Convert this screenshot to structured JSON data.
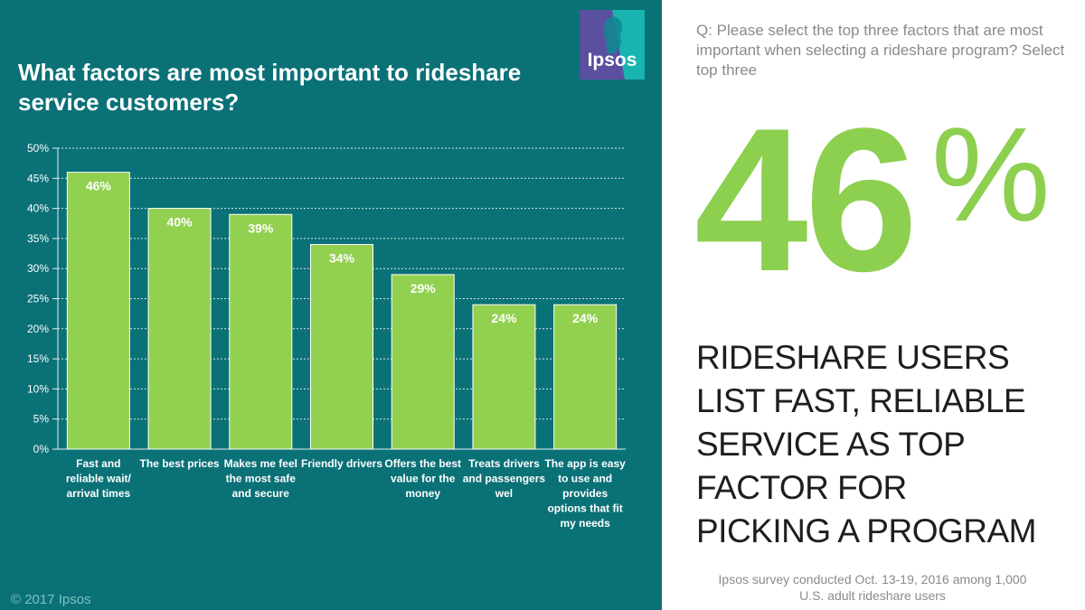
{
  "header": {
    "title": "What factors are most important to rideshare service customers?",
    "logo_text": "Ipsos"
  },
  "chart_data": {
    "type": "bar",
    "categories": [
      "Fast and reliable wait/ arrival times",
      "The best prices",
      "Makes me feel the most safe and secure",
      "Friendly drivers",
      "Offers the best value for the money",
      "Treats drivers and passengers wel",
      "The app is easy to use and provides options that fit my needs"
    ],
    "category_lines": [
      [
        "Fast and",
        "reliable wait/",
        "arrival times"
      ],
      [
        "The best prices"
      ],
      [
        "Makes me feel",
        "the most safe",
        "and secure"
      ],
      [
        "Friendly drivers"
      ],
      [
        "Offers the best",
        "value for the",
        "money"
      ],
      [
        "Treats drivers",
        "and passengers",
        "wel"
      ],
      [
        "The app is easy",
        "to use and",
        "provides",
        "options that fit",
        "my needs"
      ]
    ],
    "values": [
      46,
      40,
      39,
      34,
      29,
      24,
      24
    ],
    "data_labels": [
      "46%",
      "40%",
      "39%",
      "34%",
      "29%",
      "24%",
      "24%"
    ],
    "y_ticks": [
      "0%",
      "5%",
      "10%",
      "15%",
      "20%",
      "25%",
      "30%",
      "35%",
      "40%",
      "45%",
      "50%"
    ],
    "ylim": [
      0,
      50
    ],
    "grid": true,
    "title": "What factors are most important to rideshare service customers?",
    "xlabel": "",
    "ylabel": ""
  },
  "sidebar": {
    "question": "Q: Please select the top three factors that are most important when selecting a rideshare program? Select top three",
    "big_number": "46",
    "big_percent": "%",
    "headline": "RIDESHARE USERS LIST FAST, RELIABLE SERVICE AS TOP FACTOR FOR PICKING A PROGRAM",
    "headline_lines": [
      "RIDESHARE USERS",
      "LIST FAST, RELIABLE",
      "SERVICE AS TOP",
      "FACTOR FOR",
      "PICKING A PROGRAM"
    ],
    "footnote": "Ipsos survey conducted Oct. 13-19, 2016 among 1,000 U.S. adult rideshare users"
  },
  "footer": {
    "copyright": "© 2017 Ipsos"
  },
  "colors": {
    "panel_bg": "#0a7177",
    "bar_fill": "#92d050",
    "accent_green": "#8dcf4f",
    "logo_bg": "#5b4fa0",
    "logo_teal": "#18b5b0"
  }
}
